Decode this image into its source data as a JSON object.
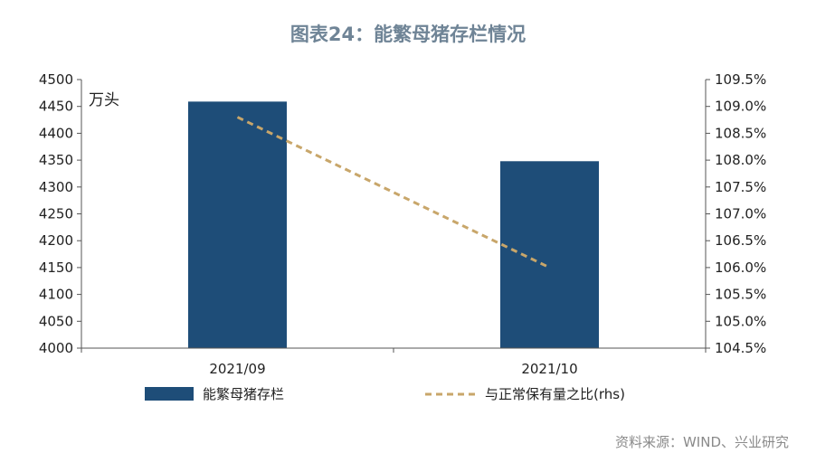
{
  "title": "图表24：能繁母猪存栏情况",
  "source": "资料来源：WIND、兴业研究",
  "colors": {
    "bar": "#1e4d78",
    "line": "#c8a66a",
    "axis": "#555555"
  },
  "chart_data": {
    "type": "bar",
    "categories": [
      "2021/09",
      "2021/10"
    ],
    "series": [
      {
        "name": "能繁母猪存栏",
        "type": "bar",
        "axis": "left",
        "values": [
          4459,
          4348
        ]
      },
      {
        "name": "与正常保有量之比(rhs)",
        "type": "line",
        "axis": "right",
        "style": "dashed",
        "values": [
          108.8,
          106.0
        ]
      }
    ],
    "ylabel": "万头",
    "ylim": [
      4000,
      4500
    ],
    "yticks": [
      4000,
      4050,
      4100,
      4150,
      4200,
      4250,
      4300,
      4350,
      4400,
      4450,
      4500
    ],
    "y2lim": [
      104.5,
      109.5
    ],
    "y2ticks": [
      "104.5%",
      "105.0%",
      "105.5%",
      "106.0%",
      "106.5%",
      "107.0%",
      "107.5%",
      "108.0%",
      "108.5%",
      "109.0%",
      "109.5%"
    ],
    "legend_position": "bottom",
    "grid": false
  }
}
